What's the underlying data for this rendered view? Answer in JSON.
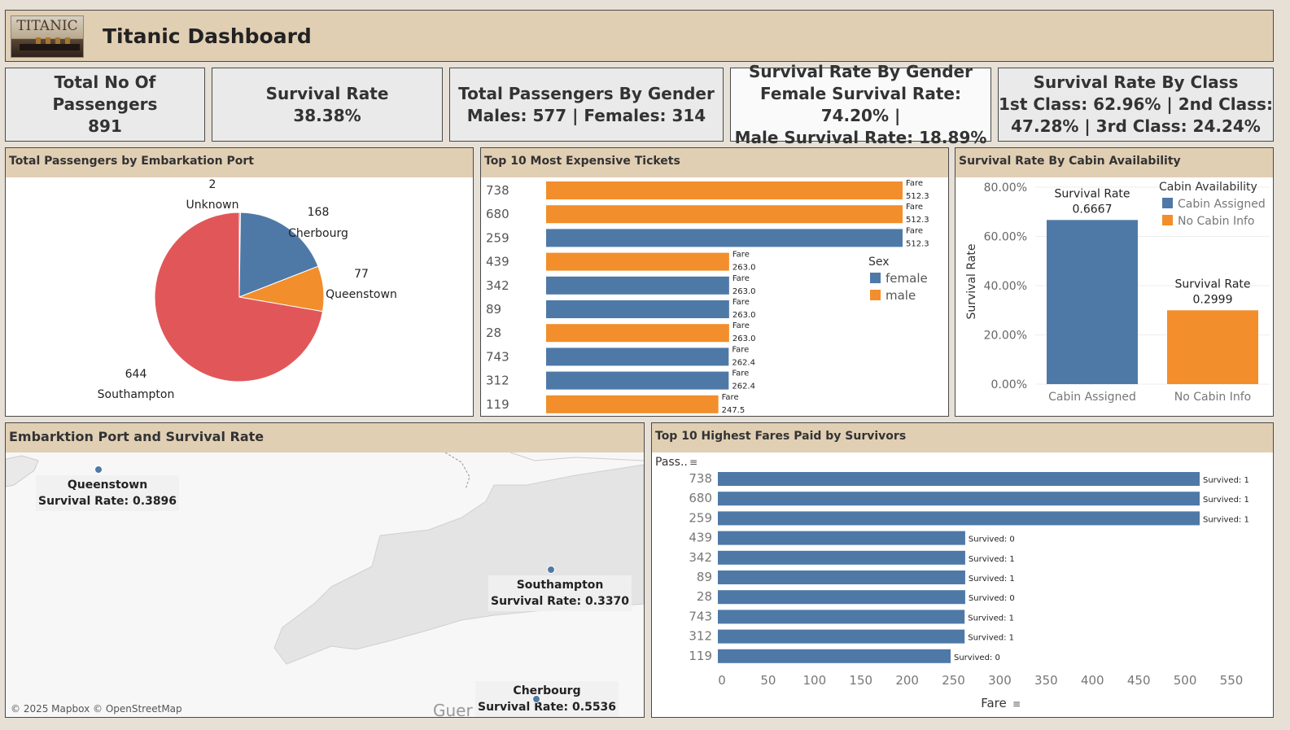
{
  "header": {
    "title": "Titanic Dashboard",
    "logo_text": "TITANIC"
  },
  "kpis": {
    "total_passengers": {
      "label": "Total No Of Passengers",
      "value": "891"
    },
    "survival_rate": {
      "label": "Survival Rate",
      "value": "38.38%"
    },
    "by_gender": {
      "label": "Total Passengers By Gender",
      "value": "Males: 577 | Females: 314"
    },
    "survival_gender": {
      "label": "Survival Rate By Gender",
      "line1": "Female Survival Rate: 74.20% |",
      "line2": "Male Survival Rate: 18.89%"
    },
    "survival_class": {
      "label": "Survival Rate By Class",
      "line1": "1st Class: 62.96% | 2nd Class:",
      "line2": "47.28% | 3rd Class: 24.24%"
    }
  },
  "colors": {
    "blue": "#4e79a7",
    "orange": "#f28e2b",
    "red": "#e15759",
    "header_bg": "#e1cfb4"
  },
  "embark_panel": {
    "title": "Total Passengers by Embarkation Port"
  },
  "tickets_panel": {
    "title": "Top 10 Most Expensive Tickets",
    "legend_title": "Sex",
    "bar_label": "Fare"
  },
  "cabin_panel": {
    "title": "Survival Rate By Cabin Availability",
    "legend_title": "Cabin Availability",
    "ylabel": "Survival Rate",
    "bar_label": "Survival Rate"
  },
  "map_panel": {
    "title": "Embarktion Port and Survival Rate",
    "attribution": "© 2025 Mapbox © OpenStreetMap",
    "partial_place_label": "Guer",
    "ports": [
      {
        "name": "Queenstown",
        "rate_text": "Survival Rate: 0.3896"
      },
      {
        "name": "Southampton",
        "rate_text": "Survival Rate: 0.3370"
      },
      {
        "name": "Cherbourg",
        "rate_text": "Survival Rate: 0.5536"
      }
    ]
  },
  "fares_panel": {
    "title": "Top 10 Highest Fares Paid by Survivors",
    "ylabel": "Pass..",
    "xlabel": "Fare"
  },
  "chart_data": [
    {
      "type": "pie",
      "title": "Total Passengers by Embarkation Port",
      "slices": [
        {
          "label": "Unknown",
          "value": 2,
          "color": "#4e79a7"
        },
        {
          "label": "Cherbourg",
          "value": 168,
          "color": "#4e79a7"
        },
        {
          "label": "Queenstown",
          "value": 77,
          "color": "#f28e2b"
        },
        {
          "label": "Southampton",
          "value": 644,
          "color": "#e15759"
        }
      ]
    },
    {
      "type": "bar",
      "orientation": "horizontal",
      "title": "Top 10 Most Expensive Tickets",
      "categories": [
        "738",
        "680",
        "259",
        "439",
        "342",
        "89",
        "28",
        "743",
        "312",
        "119"
      ],
      "values": [
        512.3,
        512.3,
        512.3,
        263.0,
        263.0,
        263.0,
        263.0,
        262.4,
        262.4,
        247.5
      ],
      "value_labels": [
        "512.3",
        "512.3",
        "512.3",
        "263.0",
        "263.0",
        "263.0",
        "263.0",
        "262.4",
        "262.4",
        "247.5"
      ],
      "sex": [
        "male",
        "male",
        "female",
        "male",
        "female",
        "female",
        "male",
        "female",
        "female",
        "male"
      ],
      "legend": [
        {
          "name": "female",
          "color": "#4e79a7"
        },
        {
          "name": "male",
          "color": "#f28e2b"
        }
      ],
      "xlim": [
        0,
        530
      ]
    },
    {
      "type": "bar",
      "title": "Survival Rate By Cabin Availability",
      "categories": [
        "Cabin Assigned",
        "No Cabin Info"
      ],
      "values": [
        0.6667,
        0.2999
      ],
      "value_labels": [
        "0.6667",
        "0.2999"
      ],
      "colors": [
        "#4e79a7",
        "#f28e2b"
      ],
      "ylabel": "Survival Rate",
      "yticks": [
        "0.00%",
        "20.00%",
        "40.00%",
        "60.00%",
        "80.00%"
      ],
      "ylim": [
        0,
        0.8
      ],
      "legend": [
        {
          "name": "Cabin Assigned",
          "color": "#4e79a7"
        },
        {
          "name": "No Cabin Info",
          "color": "#f28e2b"
        }
      ]
    },
    {
      "type": "bar",
      "orientation": "horizontal",
      "title": "Top 10 Highest Fares Paid by Survivors",
      "categories": [
        "738",
        "680",
        "259",
        "439",
        "342",
        "89",
        "28",
        "743",
        "312",
        "119"
      ],
      "values": [
        512.3,
        512.3,
        512.3,
        263.0,
        263.0,
        263.0,
        263.0,
        262.4,
        262.4,
        247.5
      ],
      "value_labels": [
        "Survived: 1",
        "Survived: 1",
        "Survived: 1",
        "Survived: 0",
        "Survived: 1",
        "Survived: 1",
        "Survived: 0",
        "Survived: 1",
        "Survived: 1",
        "Survived: 0"
      ],
      "xticks": [
        "0",
        "50",
        "100",
        "150",
        "200",
        "250",
        "300",
        "350",
        "400",
        "450",
        "500",
        "550"
      ],
      "xlim": [
        0,
        560
      ],
      "ylabel": "Pass..",
      "xlabel": "Fare",
      "color": "#4e79a7"
    }
  ]
}
